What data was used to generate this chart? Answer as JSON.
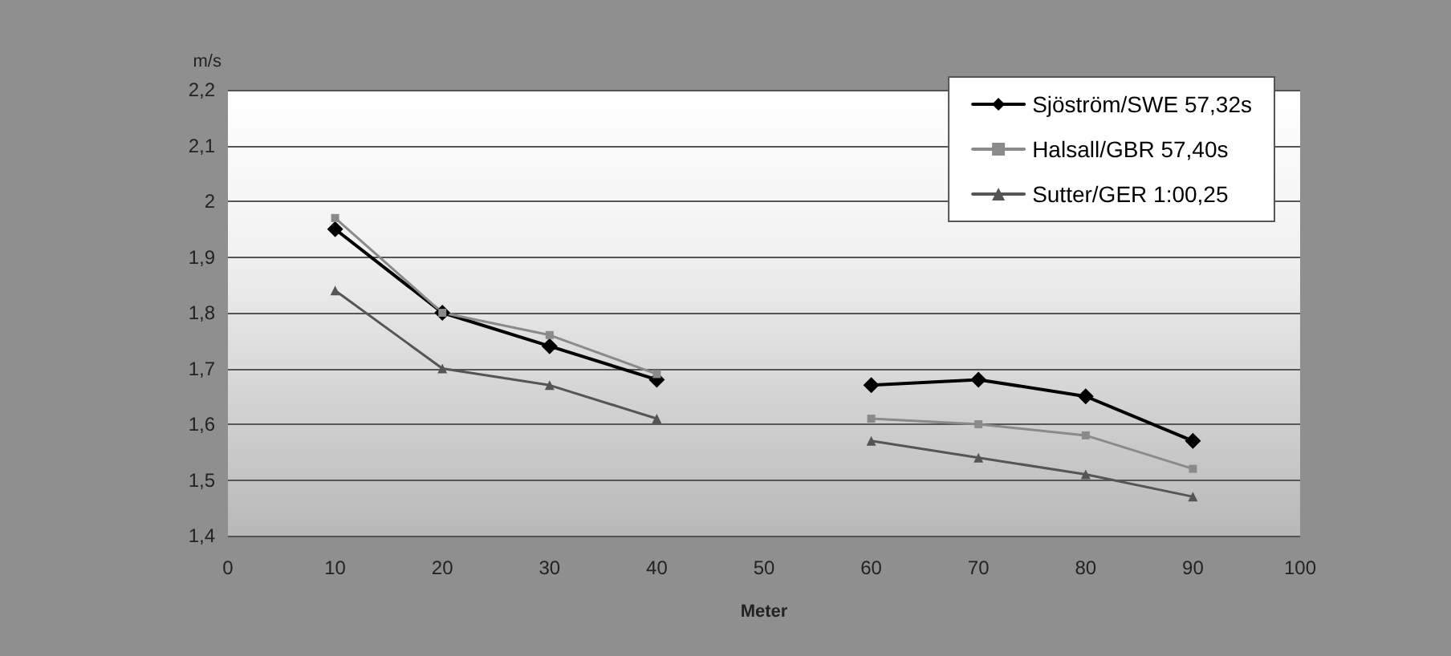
{
  "chart_data": {
    "type": "line",
    "ylabel": "m/s",
    "xlabel": "Meter",
    "x": [
      10,
      20,
      30,
      40,
      50,
      60,
      70,
      80,
      90
    ],
    "series": [
      {
        "name": "Sjöström/SWE 57,32s",
        "color": "#000000",
        "marker": "diamond",
        "values": [
          1.95,
          1.8,
          1.74,
          1.68,
          null,
          1.67,
          1.68,
          1.65,
          1.57
        ]
      },
      {
        "name": "Halsall/GBR 57,40s",
        "color": "#8a8a8a",
        "marker": "square",
        "values": [
          1.97,
          1.8,
          1.76,
          1.69,
          null,
          1.61,
          1.6,
          1.58,
          1.52
        ]
      },
      {
        "name": "Sutter/GER 1:00,25",
        "color": "#555555",
        "marker": "triangle",
        "values": [
          1.84,
          1.7,
          1.67,
          1.61,
          null,
          1.57,
          1.54,
          1.51,
          1.47
        ]
      }
    ],
    "xlim": [
      0,
      100
    ],
    "xticks": [
      0,
      10,
      20,
      30,
      40,
      50,
      60,
      70,
      80,
      90,
      100
    ],
    "ylim": [
      1.4,
      2.2
    ],
    "yticks": [
      {
        "value": 1.4,
        "label": "1,4"
      },
      {
        "value": 1.5,
        "label": "1,5"
      },
      {
        "value": 1.6,
        "label": "1,6"
      },
      {
        "value": 1.7,
        "label": "1,7"
      },
      {
        "value": 1.8,
        "label": "1,8"
      },
      {
        "value": 1.9,
        "label": "1,9"
      },
      2,
      {
        "value": 2.1,
        "label": "2,1"
      },
      {
        "value": 2.2,
        "label": "2,2"
      }
    ],
    "grid": "y",
    "legend": "top right",
    "line_style": "solid"
  }
}
